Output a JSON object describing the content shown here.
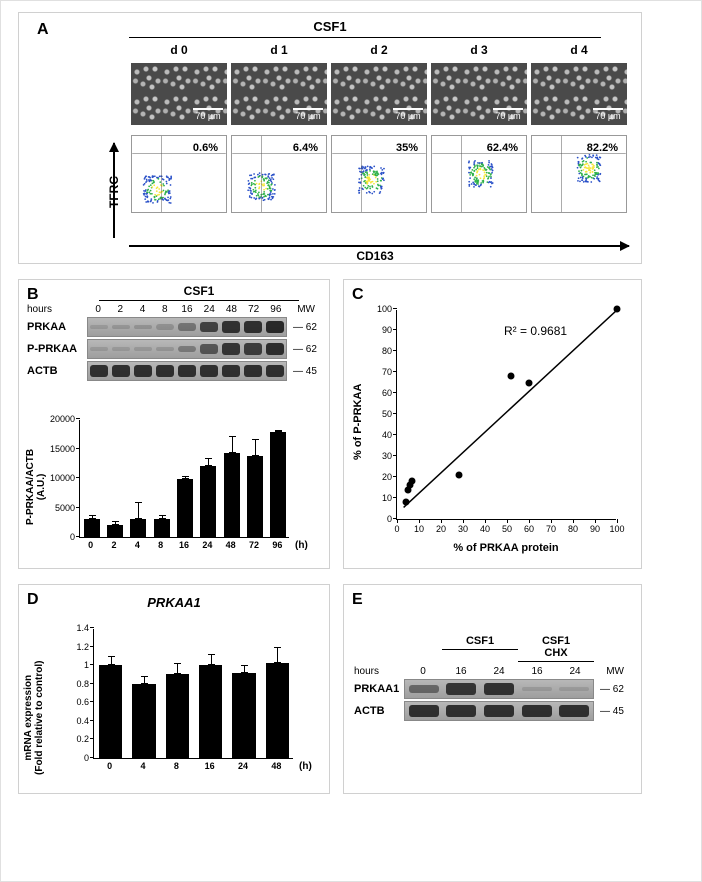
{
  "panelA": {
    "label": "A",
    "title": "CSF1",
    "days": [
      "d 0",
      "d 1",
      "d 2",
      "d 3",
      "d 4"
    ],
    "scale_bar": "70 µm",
    "flow_percents": [
      "0.6%",
      "6.4%",
      "35%",
      "62.4%",
      "82.2%"
    ],
    "y_axis": "TFRC",
    "x_axis": "CD163",
    "flow_cluster_shift": [
      0.18,
      0.25,
      0.42,
      0.58,
      0.72
    ],
    "dot_colors": {
      "low": "#2a51c8",
      "mid": "#2fb24a",
      "high": "#f5e739"
    }
  },
  "panelB": {
    "label": "B",
    "title": "CSF1",
    "hours_label": "hours",
    "blot_hours": [
      "0",
      "2",
      "4",
      "8",
      "16",
      "24",
      "48",
      "72",
      "96"
    ],
    "mw_header": "MW",
    "blots": [
      {
        "name": "PRKAA",
        "mw": "62",
        "intensity": [
          0.05,
          0.08,
          0.1,
          0.12,
          0.35,
          0.75,
          0.88,
          0.9,
          0.95
        ]
      },
      {
        "name": "P-PRKAA",
        "mw": "62",
        "intensity": [
          0.05,
          0.05,
          0.06,
          0.08,
          0.3,
          0.6,
          0.85,
          0.8,
          0.92
        ]
      },
      {
        "name": "ACTB",
        "mw": "45",
        "intensity": [
          0.9,
          0.9,
          0.9,
          0.9,
          0.9,
          0.9,
          0.9,
          0.9,
          0.9
        ]
      }
    ],
    "bar_chart": {
      "type": "bar",
      "y_label": "P-PRKAA/ACTB\n(A.U.)",
      "x_unit": "(h)",
      "y_max": 20000,
      "y_step": 5000,
      "categories": [
        "0",
        "2",
        "4",
        "8",
        "16",
        "24",
        "48",
        "72",
        "96"
      ],
      "values": [
        3000,
        2100,
        3100,
        3000,
        9800,
        12000,
        14200,
        13800,
        17800
      ],
      "errors": [
        800,
        700,
        2900,
        700,
        500,
        1400,
        3000,
        2800,
        300
      ],
      "bar_color": "#000000",
      "background": "#ffffff"
    }
  },
  "panelC": {
    "label": "C",
    "r2": "R² = 0.9681",
    "x_label": "% of PRKAA protein",
    "y_label": "% of P-PRKAA",
    "xlim": [
      0,
      100
    ],
    "ylim": [
      0,
      100
    ],
    "tick_step": 10,
    "points": [
      {
        "x": 4,
        "y": 8
      },
      {
        "x": 5,
        "y": 14
      },
      {
        "x": 6,
        "y": 16
      },
      {
        "x": 7,
        "y": 18
      },
      {
        "x": 28,
        "y": 21
      },
      {
        "x": 52,
        "y": 68
      },
      {
        "x": 60,
        "y": 65
      },
      {
        "x": 100,
        "y": 100
      }
    ],
    "marker_color": "#000000",
    "fit_line": {
      "x1": 3,
      "y1": 6,
      "x2": 100,
      "y2": 100
    }
  },
  "panelD": {
    "label": "D",
    "title": "PRKAA1",
    "y_label": "mRNA expression\n(Fold relative to control)",
    "x_unit": "(h)",
    "y_max": 1.4,
    "y_step": 0.2,
    "categories": [
      "0",
      "4",
      "8",
      "16",
      "24",
      "48"
    ],
    "values": [
      1.0,
      0.8,
      0.9,
      1.0,
      0.92,
      1.02
    ],
    "errors": [
      0.1,
      0.08,
      0.12,
      0.12,
      0.08,
      0.18
    ],
    "bar_color": "#000000"
  },
  "panelE": {
    "label": "E",
    "groups": [
      "",
      "CSF1",
      "CSF1\nCHX"
    ],
    "hours_label": "hours",
    "hours": [
      "0",
      "16",
      "24",
      "16",
      "24"
    ],
    "mw_header": "MW",
    "blots": [
      {
        "name": "PRKAA1",
        "mw": "62",
        "intensity": [
          0.45,
          0.85,
          0.88,
          0.05,
          0.04
        ]
      },
      {
        "name": "ACTB",
        "mw": "45",
        "intensity": [
          0.9,
          0.9,
          0.9,
          0.9,
          0.9
        ]
      }
    ]
  }
}
